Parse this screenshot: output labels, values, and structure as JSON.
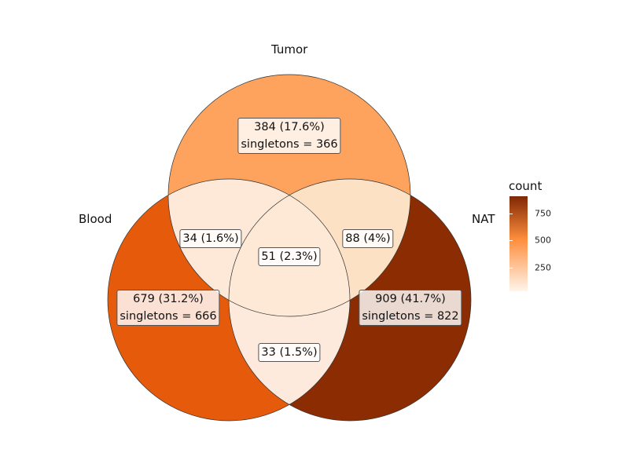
{
  "sets": [
    {
      "name": "Tumor",
      "count": 384
    },
    {
      "name": "Blood",
      "count": 679
    },
    {
      "name": "NAT",
      "count": 909
    }
  ],
  "regions": [
    {
      "id": "tumor-only",
      "sets": [
        "Tumor"
      ],
      "count": 384,
      "line1": "384 (17.6%)",
      "line2": "singletons = 366",
      "color": "#fda35d"
    },
    {
      "id": "blood-only",
      "sets": [
        "Blood"
      ],
      "count": 679,
      "line1": "679 (31.2%)",
      "line2": "singletons = 666",
      "color": "#e65a0b"
    },
    {
      "id": "nat-only",
      "sets": [
        "NAT"
      ],
      "count": 909,
      "line1": "909 (41.7%)",
      "line2": "singletons = 822",
      "color": "#8b2c02"
    },
    {
      "id": "tumor-blood",
      "sets": [
        "Tumor",
        "Blood"
      ],
      "count": 34,
      "line1": "34 (1.6%)",
      "color": "#fee9d8"
    },
    {
      "id": "tumor-nat",
      "sets": [
        "Tumor",
        "NAT"
      ],
      "count": 88,
      "line1": "88 (4%)",
      "color": "#fde1c5"
    },
    {
      "id": "blood-nat",
      "sets": [
        "Blood",
        "NAT"
      ],
      "count": 33,
      "line1": "33 (1.5%)",
      "color": "#feeadc"
    },
    {
      "id": "all-three",
      "sets": [
        "Tumor",
        "Blood",
        "NAT"
      ],
      "count": 51,
      "line1": "51 (2.3%)",
      "color": "#fee8d6"
    }
  ],
  "legend": {
    "title": "count",
    "ticks": [
      250,
      500,
      750
    ],
    "low_color": "#fff5eb",
    "mid_color": "#fd8d3c",
    "high_color": "#7f2704",
    "min": 33,
    "max": 909
  }
}
